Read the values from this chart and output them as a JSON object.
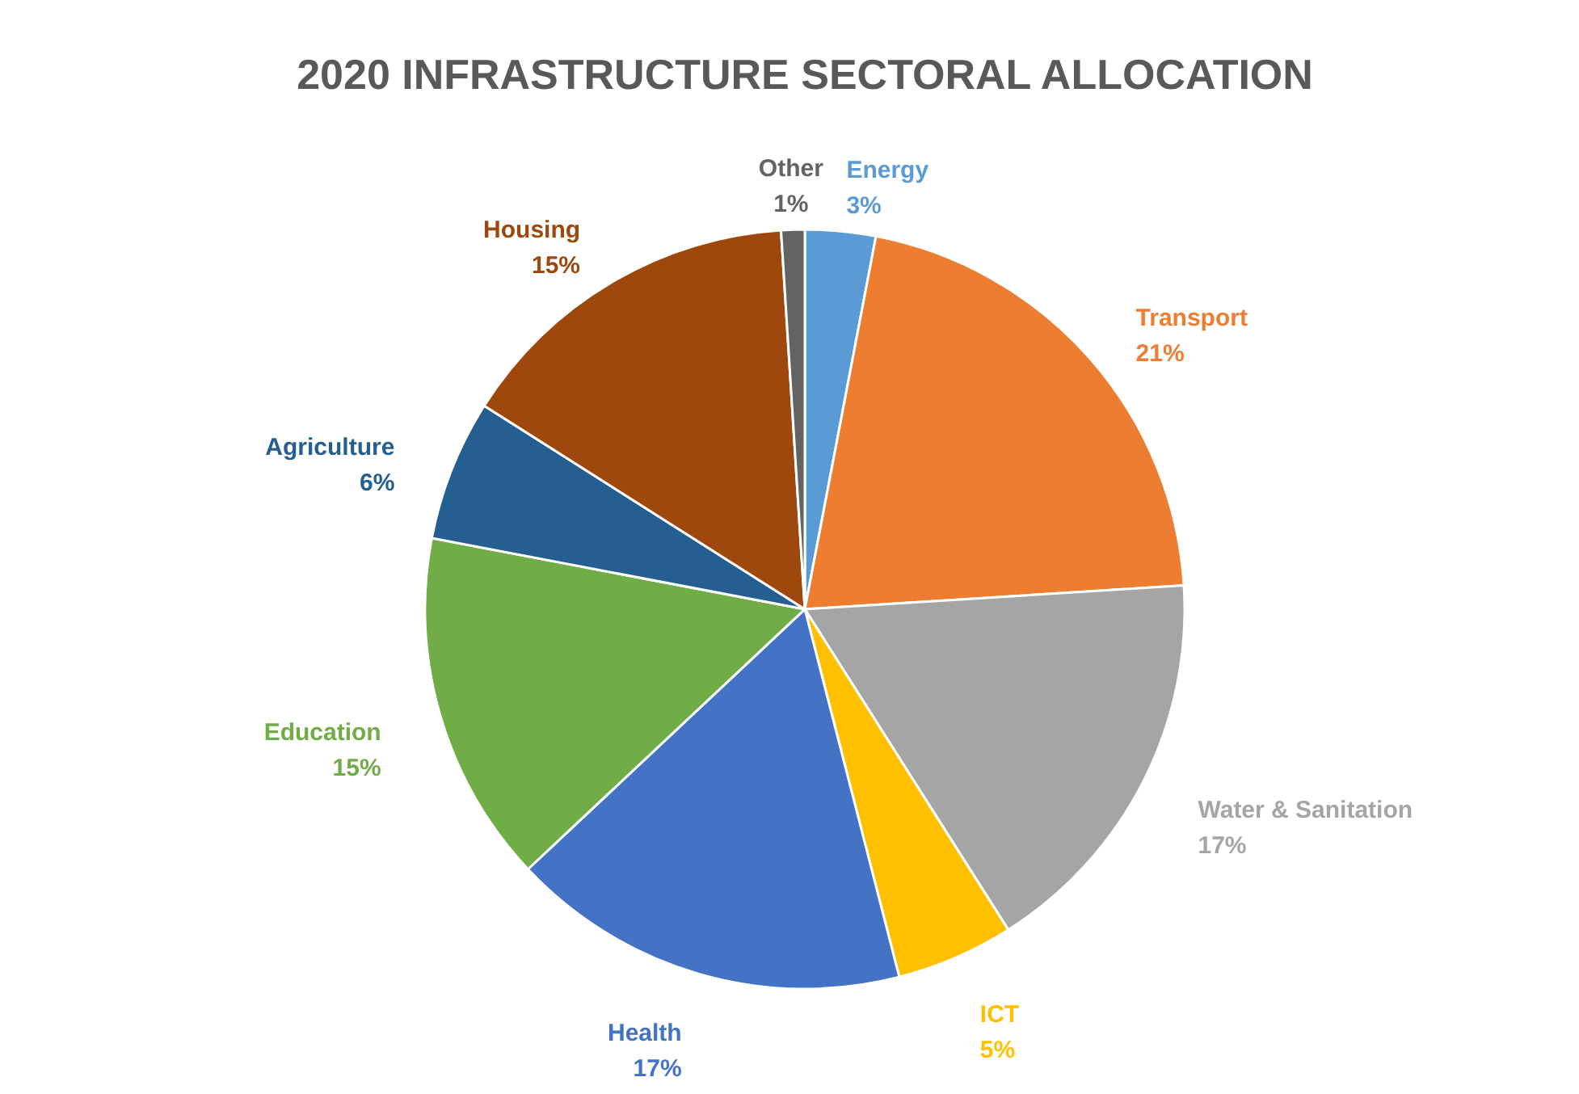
{
  "chart_data": {
    "type": "pie",
    "title": "2020 INFRASTRUCTURE SECTORAL ALLOCATION",
    "categories": [
      "Energy",
      "Transport",
      "Water & Sanitation",
      "ICT",
      "Health",
      "Education",
      "Agriculture",
      "Housing",
      "Other"
    ],
    "values": [
      3,
      21,
      17,
      5,
      17,
      15,
      6,
      15,
      1
    ],
    "value_labels": [
      "3%",
      "21%",
      "17%",
      "5%",
      "17%",
      "15%",
      "6%",
      "15%",
      "1%"
    ],
    "colors": [
      "#5b9bd5",
      "#ed7d31",
      "#a5a5a5",
      "#ffc000",
      "#4472c4",
      "#70ad47",
      "#255e91",
      "#9e480e",
      "#636363"
    ]
  }
}
